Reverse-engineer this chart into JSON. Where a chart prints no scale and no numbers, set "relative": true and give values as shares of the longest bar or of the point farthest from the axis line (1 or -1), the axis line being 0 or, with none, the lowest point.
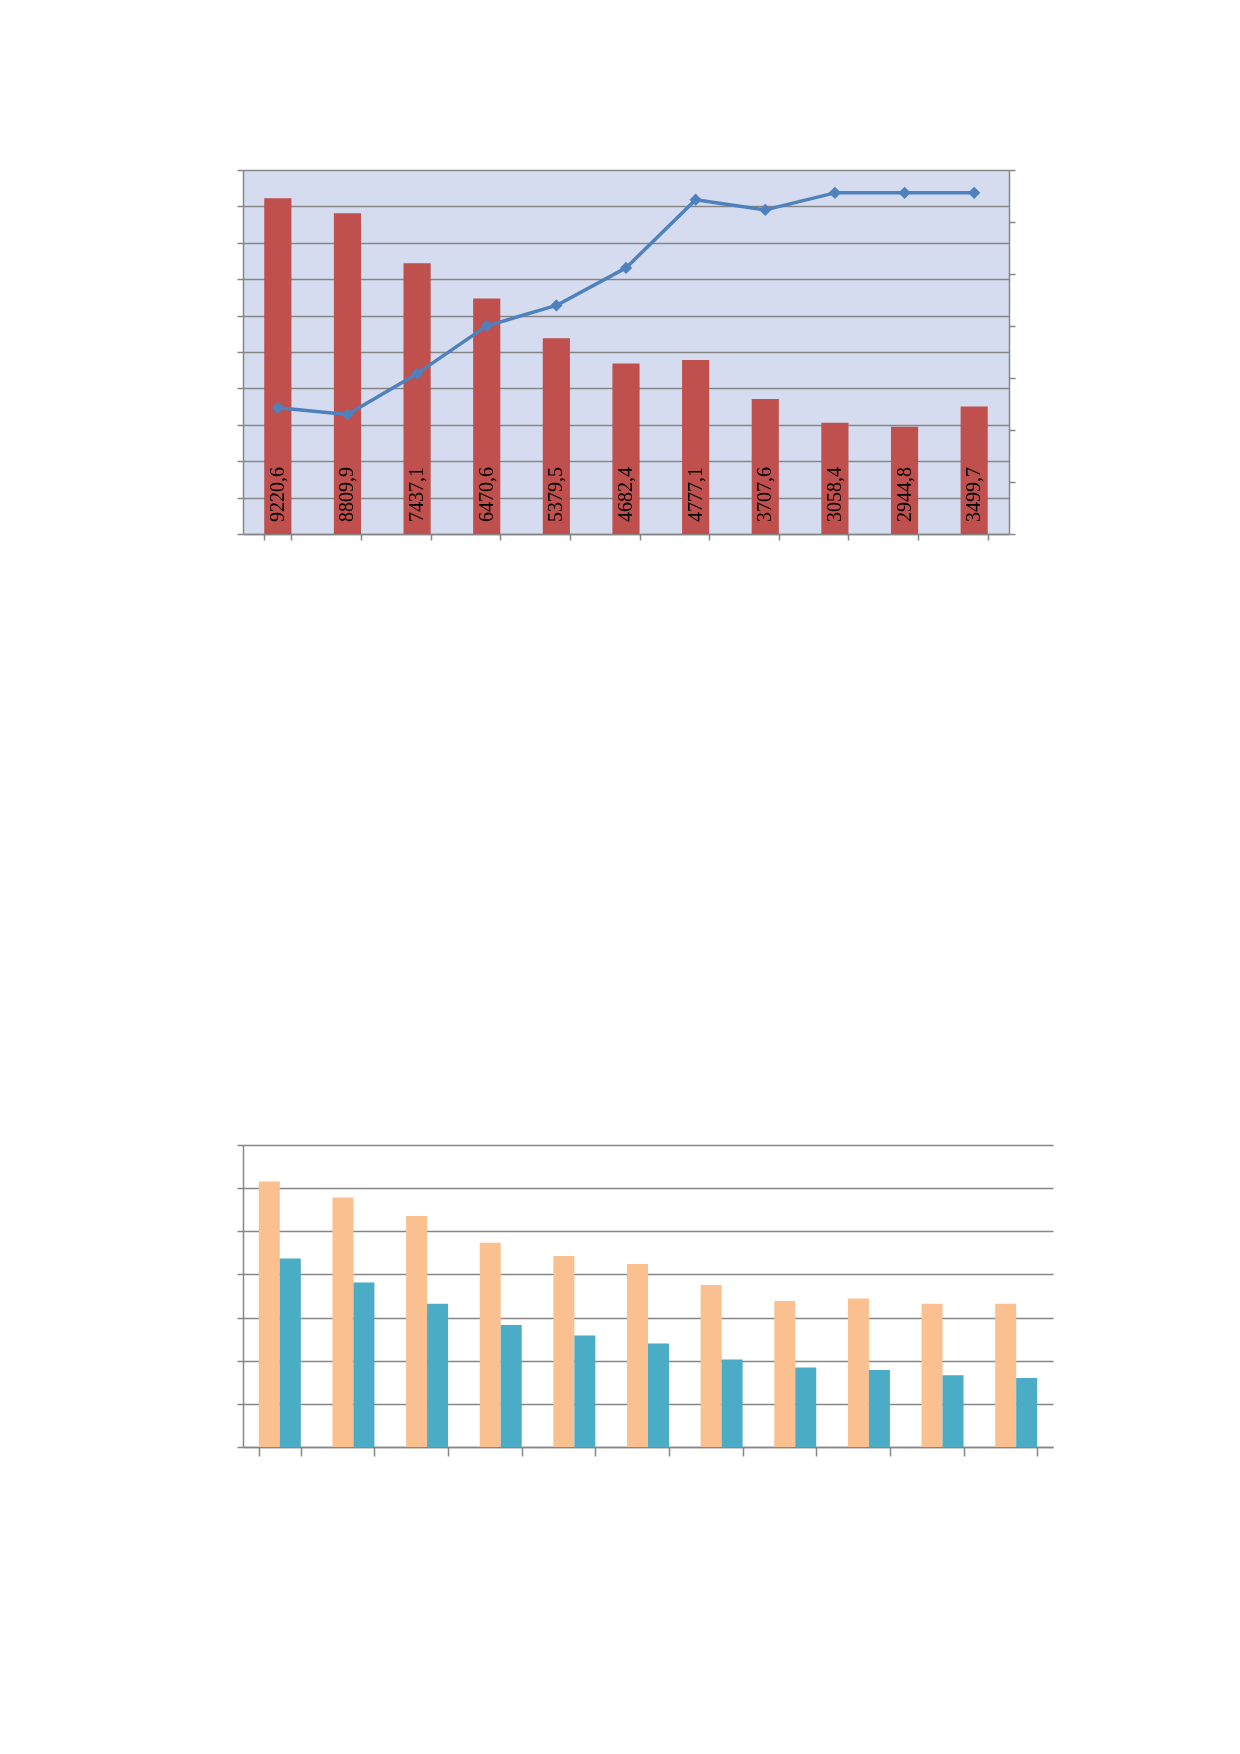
{
  "chart_data": [
    {
      "type": "bar",
      "categories": [
        null,
        null,
        null,
        null,
        null,
        null,
        null,
        null,
        null,
        null,
        null
      ],
      "series": [
        {
          "color": "#c0504d",
          "values": [
            9220.6,
            8809.9,
            7437.1,
            6470.6,
            5379.5,
            4682.4,
            4777.1,
            3707.6,
            3058.4,
            2944.8,
            3499.7
          ],
          "value_labels": [
            "9220,6",
            "8809,9",
            "7437,1",
            "6470,6",
            "5379,5",
            "4682,4",
            "4777,1",
            "3707,6",
            "3058,4",
            "2944,8",
            "3499,7"
          ]
        }
      ],
      "ylim": [
        0,
        10000
      ],
      "yticks": [
        {
          "value": 0,
          "label": null
        },
        {
          "value": 1000,
          "label": null
        },
        {
          "value": 2000,
          "label": null
        },
        {
          "value": 3000,
          "label": null
        },
        {
          "value": 4000,
          "label": null
        },
        {
          "value": 5000,
          "label": null
        },
        {
          "value": 6000,
          "label": null
        },
        {
          "value": 7000,
          "label": null
        },
        {
          "value": 8000,
          "label": null
        },
        {
          "value": 9000,
          "label": null
        },
        {
          "value": 10000,
          "label": null
        }
      ],
      "tick_labels": false,
      "grid": "y"
    },
    {
      "type": "line",
      "relative": true,
      "categories": [
        null,
        null,
        null,
        null,
        null,
        null,
        null,
        null,
        null,
        null,
        null
      ],
      "series": [
        {
          "color": "#4f81bd",
          "values": [
            0.37,
            0.35,
            0.47,
            0.61,
            0.67,
            0.78,
            0.98,
            0.95,
            1,
            1,
            1
          ]
        }
      ],
      "tick_labels": false,
      "marker": "diamond",
      "line_style": "solid"
    },
    {
      "type": "bar",
      "relative": true,
      "categories": [
        null,
        null,
        null,
        null,
        null,
        null,
        null,
        null,
        null,
        null,
        null
      ],
      "series": [
        {
          "color": "#fac090",
          "values": [
            1,
            0.94,
            0.87,
            0.77,
            0.72,
            0.69,
            0.61,
            0.55,
            0.56,
            0.54,
            0.54
          ]
        },
        {
          "color": "#4bacc6",
          "values": [
            0.71,
            0.62,
            0.54,
            0.46,
            0.42,
            0.39,
            0.33,
            0.3,
            0.29,
            0.27,
            0.26
          ]
        }
      ],
      "tick_labels": false,
      "grid": "y"
    }
  ]
}
